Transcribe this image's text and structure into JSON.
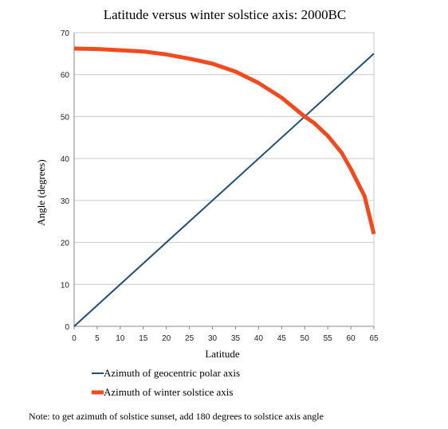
{
  "chart_data": {
    "type": "line",
    "title": "Latitude versus winter solstice axis: 2000BC",
    "xlabel": "Latitude",
    "ylabel": "Angle (degrees)",
    "xlim": [
      0,
      65
    ],
    "ylim": [
      0,
      70
    ],
    "x_ticks": [
      "0",
      "5",
      "10",
      "15",
      "20",
      "25",
      "30",
      "35",
      "40",
      "45",
      "50",
      "55",
      "60",
      "65"
    ],
    "y_ticks": [
      "0",
      "10",
      "20",
      "30",
      "40",
      "50",
      "60",
      "70"
    ],
    "grid": "horizontal",
    "legend_position": "bottom",
    "series": [
      {
        "name": "Azimuth of geocentric polar axis",
        "color": "#1f4e79",
        "x": [
          0,
          65
        ],
        "y": [
          0,
          65
        ]
      },
      {
        "name": "Azimuth of winter solstice axis",
        "color": "#f04a1e",
        "x": [
          0,
          5,
          10,
          15,
          20,
          25,
          30,
          35,
          40,
          45,
          50,
          52,
          55,
          58,
          60,
          63,
          65
        ],
        "y": [
          66.2,
          66.1,
          65.8,
          65.5,
          64.8,
          63.8,
          62.6,
          60.7,
          58.0,
          54.5,
          50.0,
          48.5,
          45.4,
          41.4,
          37.5,
          31.0,
          22.0
        ]
      }
    ]
  },
  "note": "Note: to get azimuth of solstice sunset, add 180 degrees to solstice axis angle"
}
